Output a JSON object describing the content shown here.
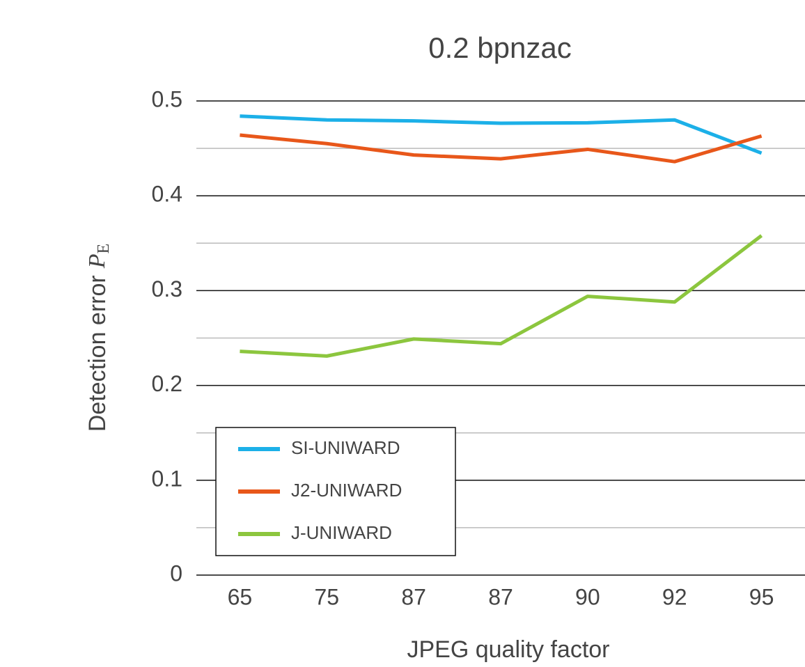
{
  "chart_data": {
    "type": "line",
    "title": "0.2 bpnzac",
    "xlabel": "JPEG quality factor",
    "ylabel": "Detection error",
    "ylabel_symbol": "P",
    "ylabel_subscript": "E",
    "categories": [
      "65",
      "75",
      "87",
      "87",
      "90",
      "92",
      "95"
    ],
    "series": [
      {
        "name": "SI-UNIWARD",
        "color": "#1cb0e8",
        "values": [
          0.484,
          0.48,
          0.479,
          0.4765,
          0.477,
          0.48,
          0.445
        ]
      },
      {
        "name": "J2-UNIWARD",
        "color": "#e8571a",
        "values": [
          0.464,
          0.455,
          0.443,
          0.439,
          0.449,
          0.436,
          0.463
        ]
      },
      {
        "name": "J-UNIWARD",
        "color": "#8cc63e",
        "values": [
          0.236,
          0.231,
          0.249,
          0.244,
          0.294,
          0.288,
          0.358
        ]
      }
    ],
    "ylim": [
      0,
      0.5
    ],
    "yticks": [
      0,
      0.1,
      0.2,
      0.3,
      0.4,
      0.5
    ],
    "minor_grid": [
      0.05,
      0.15,
      0.25,
      0.35,
      0.45
    ],
    "grid": true,
    "legend": "lower left"
  }
}
